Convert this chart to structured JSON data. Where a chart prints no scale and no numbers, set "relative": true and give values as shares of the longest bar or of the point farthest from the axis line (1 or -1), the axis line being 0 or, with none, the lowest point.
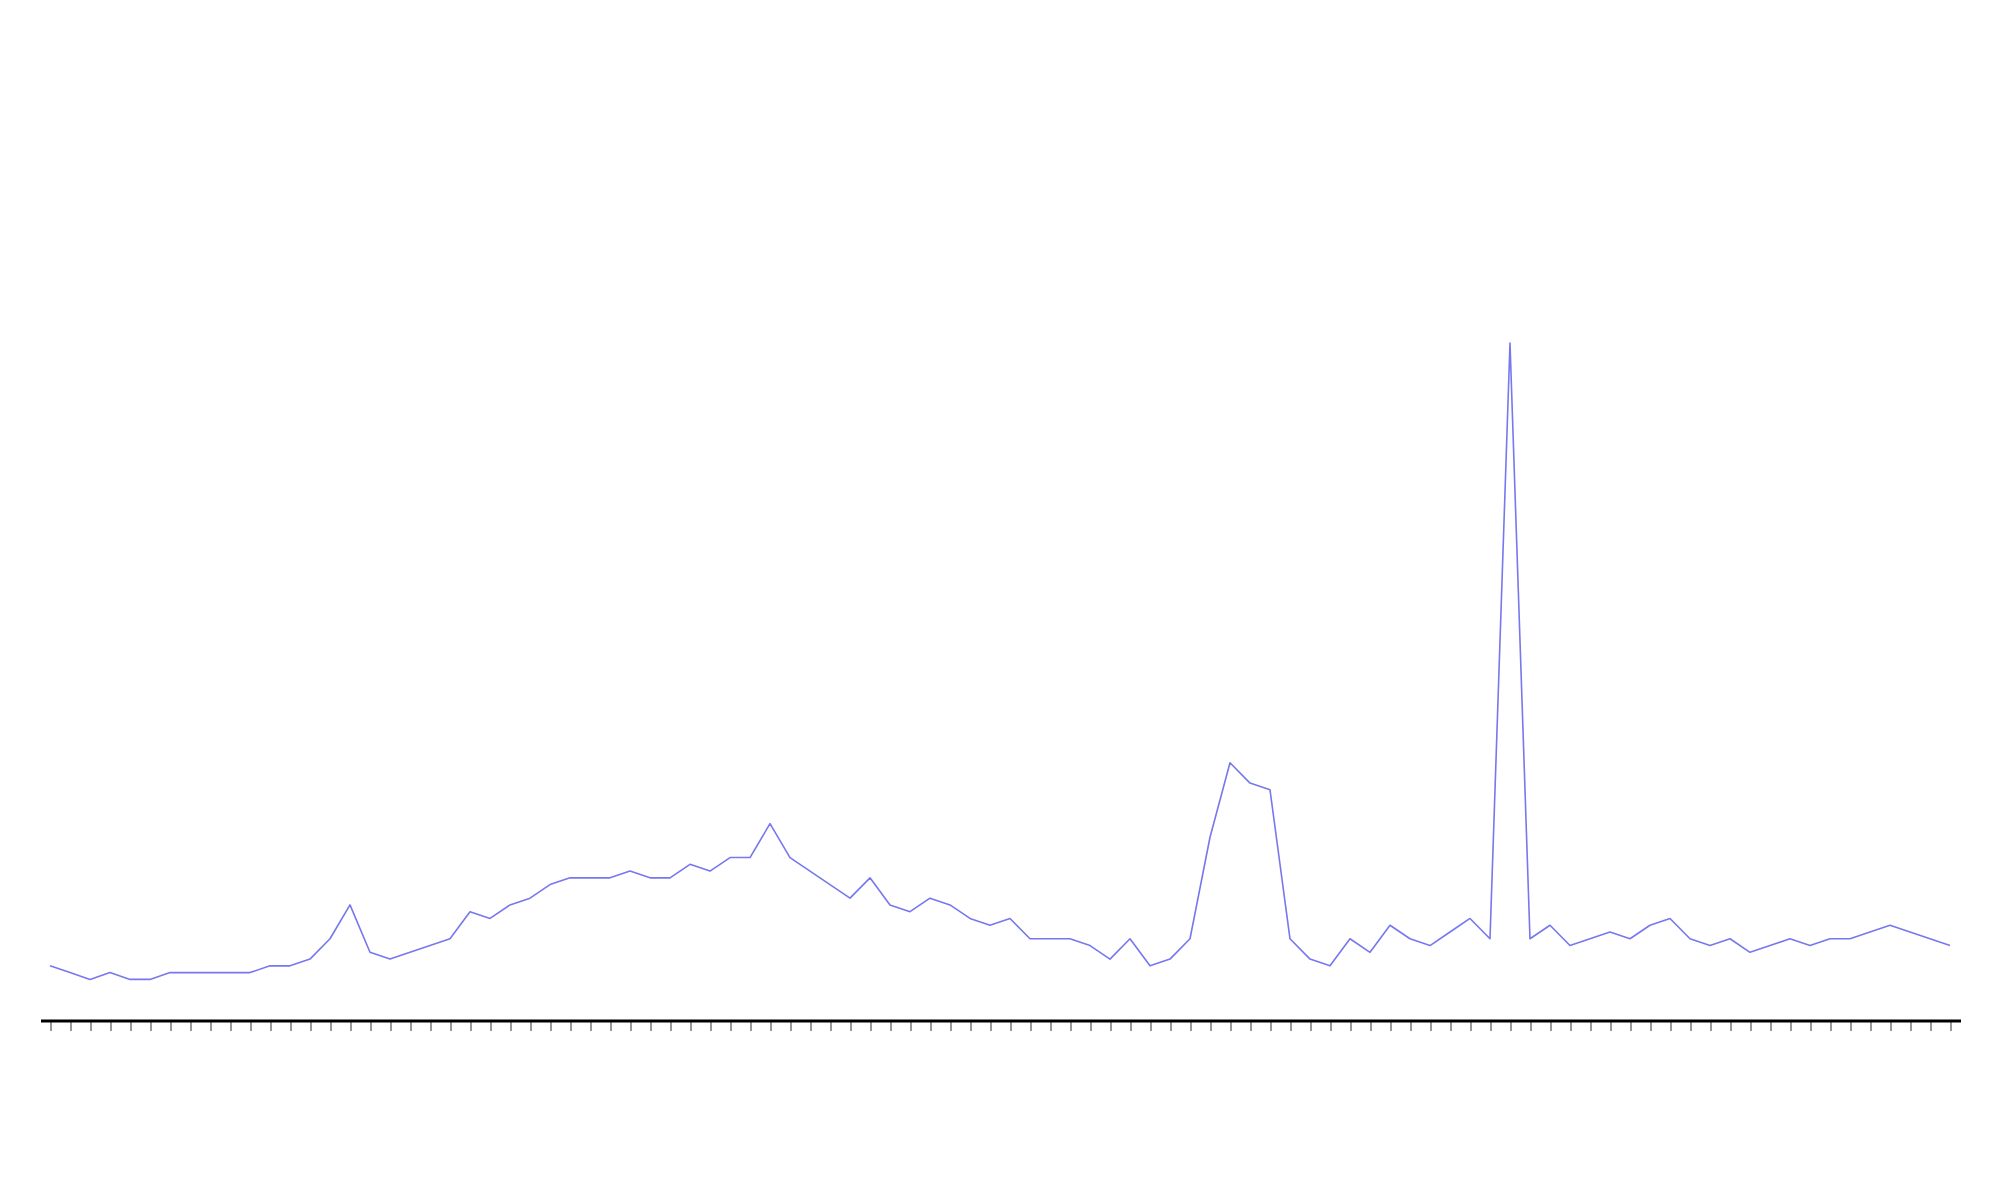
{
  "chart_data": {
    "type": "line",
    "relative": true,
    "tick_labels": false,
    "grid": false,
    "categories": [
      null,
      null,
      null,
      null,
      null,
      null,
      null,
      null,
      null,
      null,
      null,
      null,
      null,
      null,
      null,
      null,
      null,
      null,
      null,
      null,
      null,
      null,
      null,
      null,
      null,
      null,
      null,
      null,
      null,
      null,
      null,
      null,
      null,
      null,
      null,
      null,
      null,
      null,
      null,
      null,
      null,
      null,
      null,
      null,
      null,
      null,
      null,
      null,
      null,
      null,
      null,
      null,
      null,
      null,
      null,
      null,
      null,
      null,
      null,
      null,
      null,
      null,
      null,
      null,
      null,
      null,
      null,
      null,
      null,
      null,
      null,
      null,
      null,
      null,
      null,
      null,
      null,
      null,
      null,
      null,
      null,
      null,
      null,
      null,
      null,
      null,
      null,
      null,
      null,
      null,
      null,
      null,
      null,
      null,
      null,
      null
    ],
    "series": [
      {
        "color": "#7777ee",
        "values": [
          0.08,
          0.07,
          0.06,
          0.07,
          0.06,
          0.06,
          0.07,
          0.07,
          0.07,
          0.07,
          0.07,
          0.08,
          0.08,
          0.09,
          0.12,
          0.17,
          0.1,
          0.09,
          0.1,
          0.11,
          0.12,
          0.16,
          0.15,
          0.17,
          0.18,
          0.2,
          0.21,
          0.21,
          0.21,
          0.22,
          0.21,
          0.21,
          0.23,
          0.22,
          0.24,
          0.24,
          0.29,
          0.24,
          0.22,
          0.2,
          0.18,
          0.21,
          0.17,
          0.16,
          0.18,
          0.17,
          0.15,
          0.14,
          0.15,
          0.12,
          0.12,
          0.12,
          0.11,
          0.09,
          0.12,
          0.08,
          0.09,
          0.12,
          0.27,
          0.38,
          0.35,
          0.34,
          0.12,
          0.09,
          0.08,
          0.12,
          0.1,
          0.14,
          0.12,
          0.11,
          0.13,
          0.15,
          0.12,
          1,
          0.12,
          0.14,
          0.11,
          0.12,
          0.13,
          0.12,
          0.14,
          0.15,
          0.12,
          0.11,
          0.12,
          0.1,
          0.11,
          0.12,
          0.11,
          0.12,
          0.12,
          0.13,
          0.14,
          0.13,
          0.12,
          0.11
        ]
      }
    ]
  }
}
